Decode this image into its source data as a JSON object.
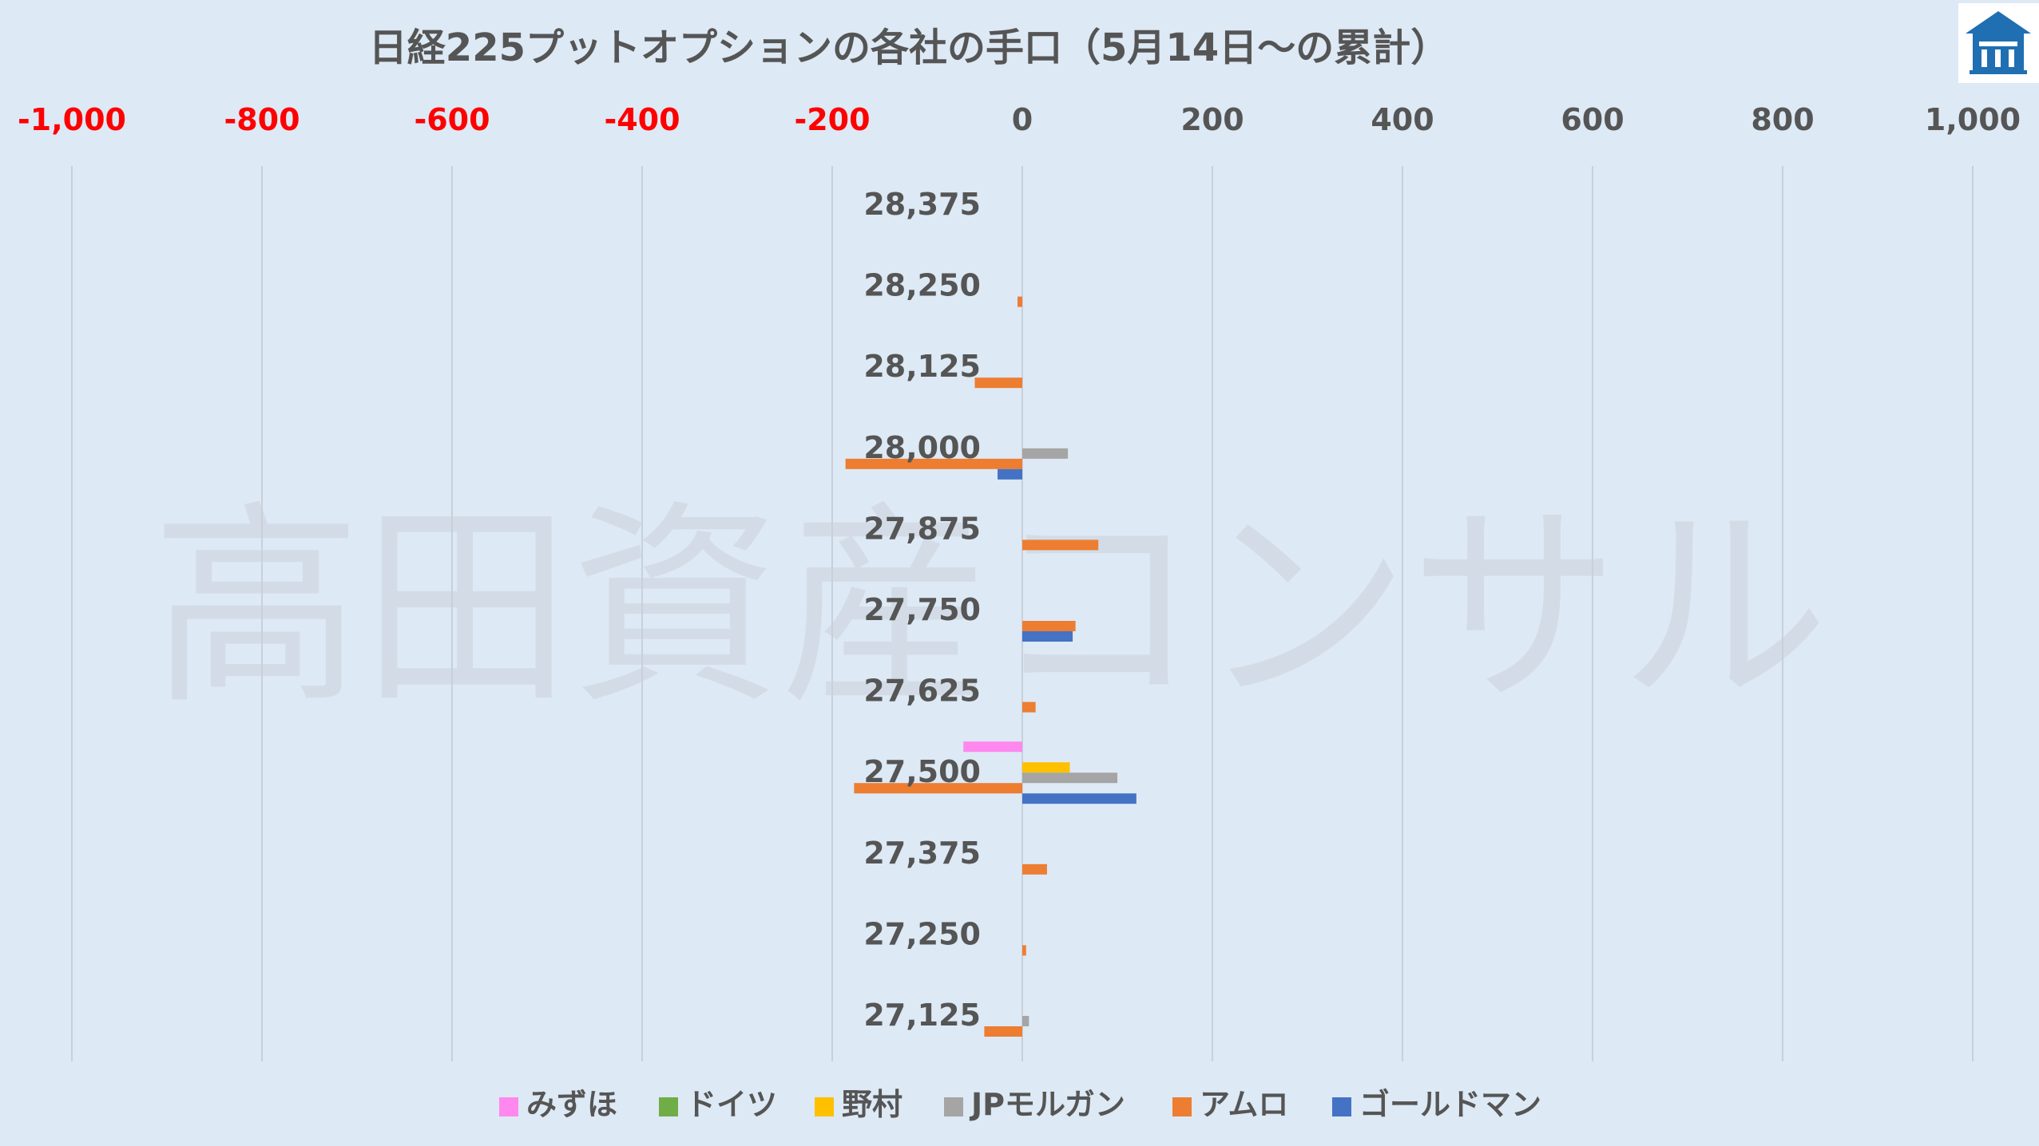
{
  "chart_data": {
    "type": "bar",
    "orientation": "horizontal",
    "title": "日経225プットオプションの各社の手口（5月14日～の累計）",
    "watermark": "高田資産コンサル",
    "xlim": [
      -1000,
      1000
    ],
    "x_ticks": [
      -1000,
      -800,
      -600,
      -400,
      -200,
      0,
      200,
      400,
      600,
      800,
      1000
    ],
    "x_tick_labels": [
      "-1,000",
      "-800",
      "-600",
      "-400",
      "-200",
      "0",
      "200",
      "400",
      "600",
      "800",
      "1,000"
    ],
    "negative_tick_color": "#ff0000",
    "positive_tick_color": "#555555",
    "grid": true,
    "legend_position": "bottom",
    "categories": [
      "28,375",
      "28,250",
      "28,125",
      "28,000",
      "27,875",
      "27,750",
      "27,625",
      "27,500",
      "27,375",
      "27,250",
      "27,125"
    ],
    "series": [
      {
        "name": "みずほ",
        "color": "#ff88ee",
        "values": [
          0,
          0,
          0,
          0,
          0,
          0,
          0,
          -62,
          0,
          0,
          0
        ]
      },
      {
        "name": "ドイツ",
        "color": "#70ad47",
        "values": [
          0,
          0,
          0,
          0,
          0,
          0,
          0,
          0,
          0,
          0,
          0
        ]
      },
      {
        "name": "野村",
        "color": "#ffc000",
        "values": [
          0,
          0,
          0,
          0,
          0,
          0,
          0,
          50,
          0,
          0,
          0
        ]
      },
      {
        "name": "JPモルガン",
        "color": "#a5a5a5",
        "values": [
          0,
          0,
          0,
          48,
          0,
          0,
          0,
          100,
          0,
          0,
          7
        ]
      },
      {
        "name": "アムロ",
        "color": "#ed7d31",
        "values": [
          0,
          -5,
          -50,
          -186,
          80,
          56,
          14,
          -177,
          26,
          4,
          -40
        ]
      },
      {
        "name": "ゴールドマン",
        "color": "#4472c4",
        "values": [
          0,
          0,
          0,
          -26,
          0,
          53,
          0,
          120,
          0,
          0,
          0
        ]
      }
    ]
  },
  "logo": {
    "icon": "house-logo-icon",
    "color": "#1f6fb2"
  }
}
